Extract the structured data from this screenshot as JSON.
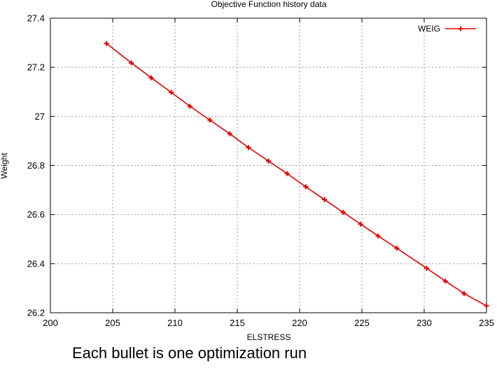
{
  "chart_data": {
    "type": "line",
    "title": "Objective Function history data",
    "xlabel": "ELSTRESS",
    "ylabel": "Weight",
    "xlim": [
      200,
      235
    ],
    "ylim": [
      26.2,
      27.4
    ],
    "x_ticks": [
      200,
      205,
      210,
      215,
      220,
      225,
      230,
      235
    ],
    "y_ticks": [
      26.2,
      26.4,
      26.6,
      26.8,
      27,
      27.2,
      27.4
    ],
    "x_tick_labels": [
      "200",
      "205",
      "210",
      "215",
      "220",
      "225",
      "230",
      "235"
    ],
    "y_tick_labels": [
      "26.2",
      "26.4",
      "26.6",
      "26.8",
      "27",
      "27.2",
      "27.4"
    ],
    "grid": true,
    "legend_position": "top-right",
    "series": [
      {
        "name": "WEIG",
        "color": "#e60000",
        "marker": "plus",
        "x": [
          204.5,
          206.5,
          208.1,
          209.7,
          211.2,
          212.8,
          214.4,
          215.9,
          217.5,
          219.0,
          220.5,
          222.0,
          223.5,
          224.9,
          226.3,
          227.8,
          230.2,
          231.7,
          233.2,
          235.0
        ],
        "y": [
          27.297,
          27.218,
          27.157,
          27.098,
          27.041,
          26.985,
          26.929,
          26.873,
          26.818,
          26.767,
          26.713,
          26.661,
          26.609,
          26.561,
          26.513,
          26.463,
          26.381,
          26.329,
          26.278,
          26.228
        ]
      }
    ]
  },
  "caption": "Each bullet is one optimization run"
}
